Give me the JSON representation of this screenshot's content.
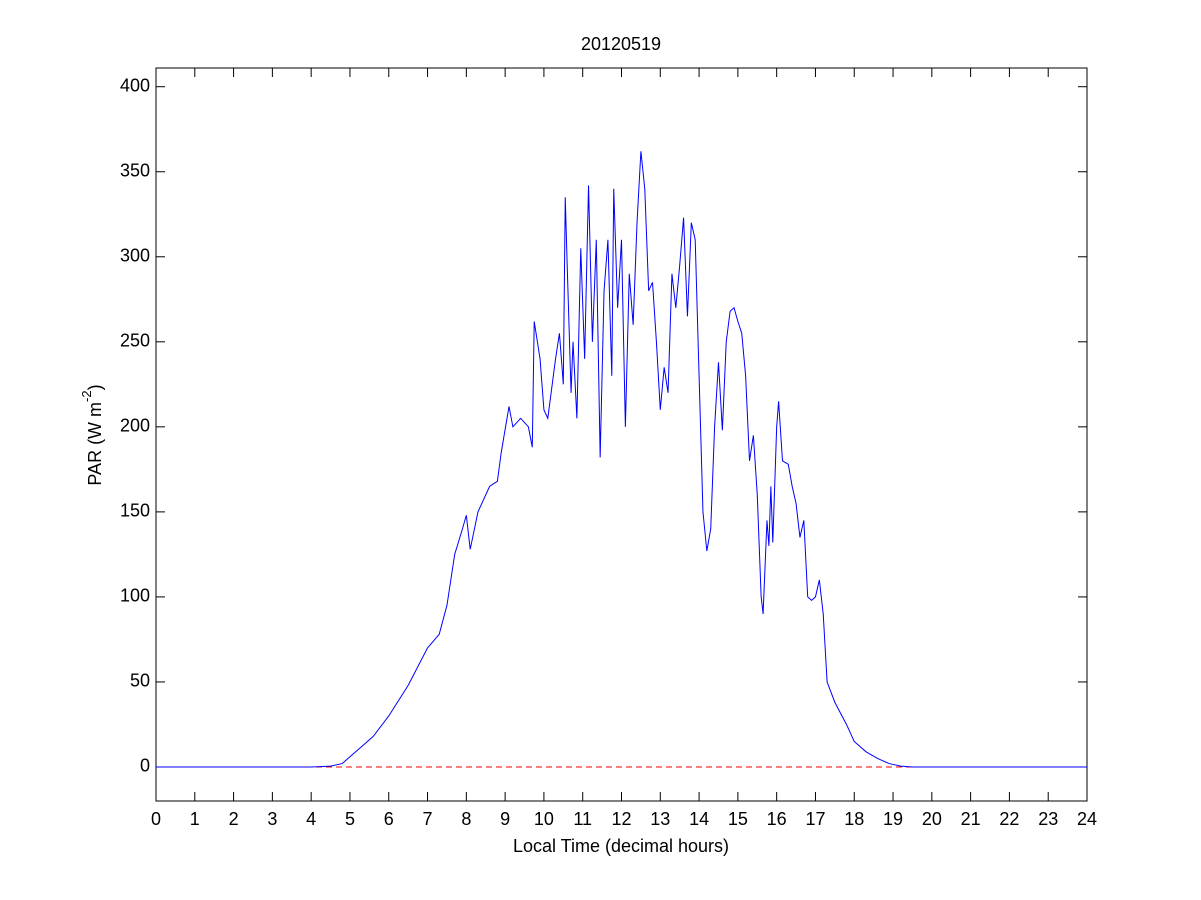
{
  "chart_data": {
    "type": "line",
    "title": "20120519",
    "xlabel": "Local Time (decimal hours)",
    "ylabel": [
      "PAR (W m",
      "-2",
      ")"
    ],
    "xlim": [
      0,
      24
    ],
    "ylim": [
      -20,
      411
    ],
    "xticks": [
      0,
      1,
      2,
      3,
      4,
      5,
      6,
      7,
      8,
      9,
      10,
      11,
      12,
      13,
      14,
      15,
      16,
      17,
      18,
      19,
      20,
      21,
      22,
      23,
      24
    ],
    "yticks": [
      0,
      50,
      100,
      150,
      200,
      250,
      300,
      350,
      400
    ],
    "reference_line": {
      "y": 0,
      "color": "#ff0000",
      "dashed": true
    },
    "series": [
      {
        "color": "#0000ff",
        "x": [
          0,
          4,
          4.5,
          4.8,
          5.0,
          5.3,
          5.6,
          6.0,
          6.5,
          7.0,
          7.3,
          7.5,
          7.7,
          7.9,
          8.0,
          8.1,
          8.3,
          8.6,
          8.8,
          8.9,
          9.1,
          9.2,
          9.4,
          9.6,
          9.7,
          9.75,
          9.9,
          10.0,
          10.1,
          10.3,
          10.4,
          10.5,
          10.55,
          10.6,
          10.7,
          10.75,
          10.85,
          10.95,
          11.05,
          11.15,
          11.25,
          11.35,
          11.45,
          11.55,
          11.65,
          11.75,
          11.8,
          11.9,
          12.0,
          12.1,
          12.2,
          12.3,
          12.4,
          12.5,
          12.6,
          12.7,
          12.8,
          12.9,
          13.0,
          13.1,
          13.2,
          13.3,
          13.4,
          13.5,
          13.6,
          13.7,
          13.8,
          13.9,
          14.0,
          14.1,
          14.2,
          14.3,
          14.4,
          14.5,
          14.6,
          14.7,
          14.8,
          14.9,
          15.0,
          15.1,
          15.2,
          15.3,
          15.4,
          15.5,
          15.6,
          15.65,
          15.75,
          15.8,
          15.85,
          15.9,
          16.0,
          16.05,
          16.15,
          16.3,
          16.4,
          16.5,
          16.6,
          16.7,
          16.8,
          16.9,
          17.0,
          17.1,
          17.2,
          17.3,
          17.5,
          17.8,
          18.0,
          18.3,
          18.6,
          18.9,
          19.2,
          19.5,
          20,
          24
        ],
        "values": [
          0,
          0,
          0.5,
          2,
          6,
          12,
          18,
          30,
          48,
          70,
          78,
          95,
          125,
          140,
          148,
          128,
          150,
          165,
          168,
          185,
          212,
          200,
          205,
          200,
          188,
          262,
          240,
          210,
          205,
          240,
          255,
          225,
          335,
          295,
          220,
          250,
          205,
          305,
          240,
          342,
          250,
          310,
          182,
          280,
          310,
          230,
          340,
          270,
          310,
          200,
          290,
          260,
          320,
          362,
          340,
          280,
          285,
          250,
          210,
          235,
          220,
          290,
          270,
          295,
          323,
          265,
          320,
          310,
          230,
          150,
          127,
          140,
          200,
          238,
          198,
          250,
          268,
          270,
          262,
          255,
          230,
          180,
          195,
          160,
          100,
          90,
          145,
          130,
          165,
          132,
          200,
          215,
          180,
          178,
          165,
          155,
          135,
          145,
          100,
          98,
          100,
          110,
          90,
          50,
          38,
          25,
          15,
          9,
          5,
          2,
          0.5,
          0,
          0,
          0
        ]
      }
    ]
  }
}
